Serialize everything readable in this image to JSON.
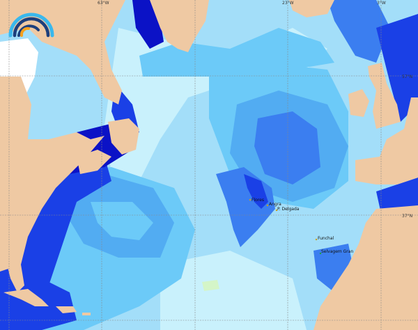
{
  "map": {
    "grid_labels": {
      "lon": [
        "63°W",
        "23°W",
        "3°W"
      ],
      "lat": [
        "57°N",
        "37°N"
      ]
    },
    "places": [
      "Flores",
      "Angra",
      "P. Delgada",
      "Funchal",
      "Selvagem Gran"
    ],
    "colors": {
      "land": "#efc9a3",
      "ice_sea": "#ffffff",
      "level_1": "#c9f1fc",
      "level_2": "#a3def9",
      "level_3": "#6ccaf8",
      "level_4": "#52acf2",
      "level_5": "#3b7ef0",
      "level_6": "#1a40e6",
      "level_7": "#0b12c6",
      "logo_light": "#3ab8ec",
      "logo_dark": "#1d3f7c",
      "logo_orange": "#f5a11e"
    }
  }
}
